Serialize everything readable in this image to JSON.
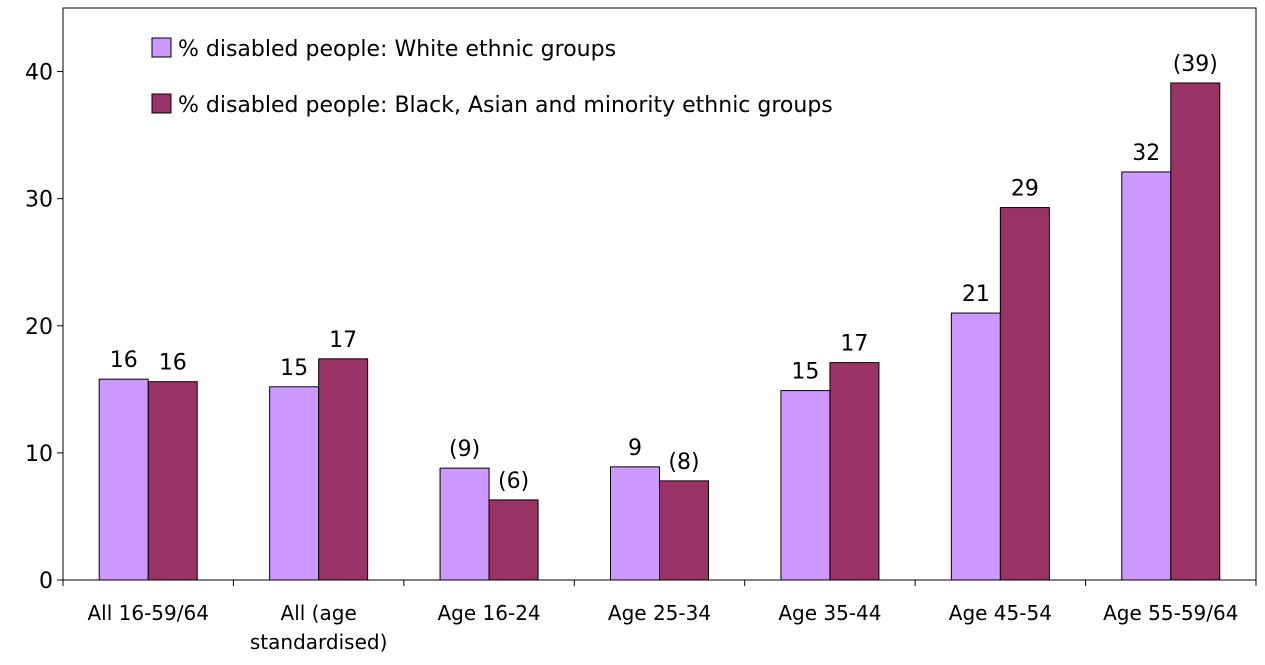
{
  "chart_data": {
    "type": "bar",
    "title": "",
    "xlabel": "",
    "ylabel": "",
    "ylim": [
      0,
      45
    ],
    "yticks": [
      0,
      10,
      20,
      30,
      40
    ],
    "grid": false,
    "legend_position": "top-left",
    "categories": [
      [
        "All 16-59/64"
      ],
      [
        "All (age",
        "standardised)"
      ],
      [
        "Age 16-24"
      ],
      [
        "Age 25-34"
      ],
      [
        "Age 35-44"
      ],
      [
        "Age 45-54"
      ],
      [
        "Age 55-59/64"
      ]
    ],
    "series": [
      {
        "name": "% disabled people: White ethnic groups",
        "color": "#cc99ff",
        "values": [
          15.8,
          15.2,
          8.8,
          8.9,
          14.9,
          21.0,
          32.1
        ],
        "labels": [
          "16",
          "15",
          "(9)",
          "9",
          "15",
          "21",
          "32"
        ]
      },
      {
        "name": "% disabled people: Black, Asian and minority ethnic groups",
        "color": "#993366",
        "values": [
          15.6,
          17.4,
          6.3,
          7.8,
          17.1,
          29.3,
          39.1
        ],
        "labels": [
          "16",
          "17",
          "(6)",
          "(8)",
          "17",
          "29",
          "(39)"
        ]
      }
    ]
  }
}
